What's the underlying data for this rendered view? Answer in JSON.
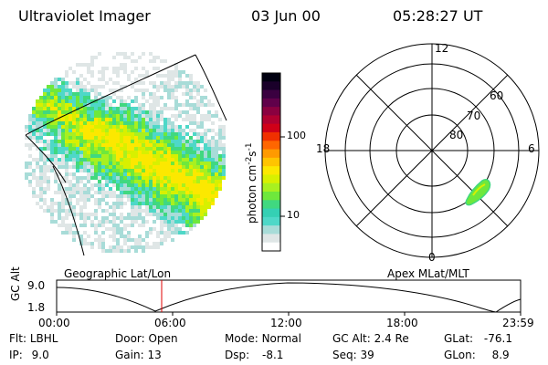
{
  "header": {
    "title": "Ultraviolet Imager",
    "date": "03 Jun 00",
    "time": "05:28:27 UT"
  },
  "image_panel": {
    "label": "Geographic Lat/Lon"
  },
  "colorbar": {
    "label_main": "photon cm",
    "label_sup1": "-2",
    "label_s": "s",
    "label_sup2": "-1",
    "tick_100": "100",
    "tick_10": "10",
    "colors": [
      "#ffffff",
      "#dfe6e6",
      "#a8dcd8",
      "#4ed8c8",
      "#34d0b4",
      "#40d880",
      "#6ee83c",
      "#a8f020",
      "#d8f000",
      "#fce800",
      "#ffc400",
      "#ff9a00",
      "#ff6600",
      "#f03000",
      "#d00018",
      "#b00030",
      "#8a0040",
      "#60004a",
      "#3a0040",
      "#1a002a",
      "#000010"
    ]
  },
  "polar_plot": {
    "label": "Apex MLat/MLT",
    "mlt_12": "12",
    "mlt_18": "18",
    "mlt_6": "6",
    "mlt_0": "0",
    "lat_60": "60",
    "lat_70": "70",
    "lat_80": "80"
  },
  "timeline": {
    "ylabel": "GC Alt",
    "y_top": "9.0",
    "y_bottom": "1.8",
    "ticks": [
      "00:00",
      "06:00",
      "12:00",
      "18:00",
      "23:59"
    ],
    "marker_time": "05:28"
  },
  "info": {
    "flt": {
      "label": "Flt:",
      "value": "LBHL"
    },
    "ip": {
      "label": "IP:",
      "value": "9.0"
    },
    "door": {
      "label": "Door:",
      "value": "Open"
    },
    "gain": {
      "label": "Gain:",
      "value": "13"
    },
    "mode": {
      "label": "Mode:",
      "value": "Normal"
    },
    "dsp": {
      "label": "Dsp:",
      "value": "-8.1"
    },
    "gc_alt": {
      "label": "GC Alt:",
      "value": "2.4 Re"
    },
    "seq": {
      "label": "Seq:",
      "value": "39"
    },
    "glat": {
      "label": "GLat:",
      "value": "-76.1"
    },
    "glon": {
      "label": "GLon:",
      "value": "8.9"
    }
  }
}
